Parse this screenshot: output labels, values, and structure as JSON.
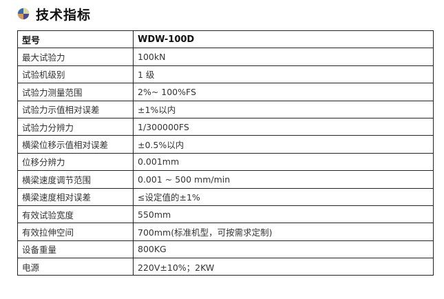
{
  "title": "技术指标",
  "icon": "four-color-ball-icon",
  "header": {
    "key": "型号",
    "value": "WDW-100D"
  },
  "rows": [
    {
      "key": "最大试验力",
      "value": "100kN"
    },
    {
      "key": "试验机级别",
      "value": "1 级"
    },
    {
      "key": "试验力测量范围",
      "value": "2%~ 100%FS"
    },
    {
      "key": "试验力示值相对误差",
      "value": "±1%以内"
    },
    {
      "key": "试验力分辨力",
      "value": "1/300000FS"
    },
    {
      "key": "横梁位移示值相对误差",
      "value": "±0.5%以内"
    },
    {
      "key": "位移分辨力",
      "value": "0.001mm"
    },
    {
      "key": "横梁速度调节范围",
      "value": "0.001 ~ 500 mm/min"
    },
    {
      "key": "横梁速度相对误差",
      "value": "≤设定值的±1%"
    },
    {
      "key": "有效试验宽度",
      "value": "550mm"
    },
    {
      "key": "有效拉伸空间",
      "value": "700mm(标准机型，可按需求定制)"
    },
    {
      "key": "设备重量",
      "value": "800KG"
    },
    {
      "key": "电源",
      "value": "220V±10%；2KW"
    }
  ]
}
